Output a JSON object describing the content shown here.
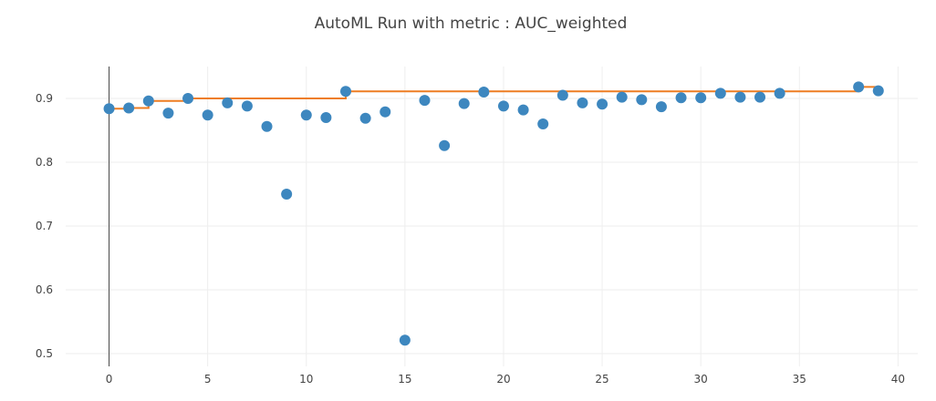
{
  "chart_data": {
    "type": "scatter",
    "title": "AutoML Run with metric : AUC_weighted",
    "xlabel": "",
    "ylabel": "",
    "xlim": [
      -2.2,
      41
    ],
    "ylim": [
      0.48,
      0.95
    ],
    "x_ticks": [
      0,
      5,
      10,
      15,
      20,
      25,
      30,
      35,
      40
    ],
    "y_ticks": [
      0.5,
      0.6,
      0.7,
      0.8,
      0.9
    ],
    "x_tick_labels": [
      "0",
      "5",
      "10",
      "15",
      "20",
      "25",
      "30",
      "35",
      "40"
    ],
    "y_tick_labels": [
      "0.5",
      "0.6",
      "0.7",
      "0.8",
      "0.9"
    ],
    "grid": true,
    "legend": "none",
    "series": [
      {
        "type": "scatter",
        "color": "#3d87bf",
        "x": [
          0,
          1,
          2,
          3,
          4,
          5,
          6,
          7,
          8,
          9,
          10,
          11,
          12,
          13,
          14,
          15,
          16,
          17,
          18,
          19,
          20,
          21,
          22,
          23,
          24,
          25,
          26,
          27,
          28,
          29,
          30,
          31,
          32,
          33,
          34,
          38,
          39
        ],
        "y": [
          0.884,
          0.885,
          0.896,
          0.877,
          0.9,
          0.874,
          0.893,
          0.888,
          0.856,
          0.75,
          0.874,
          0.87,
          0.911,
          0.869,
          0.879,
          0.521,
          0.897,
          0.826,
          0.892,
          0.91,
          0.888,
          0.882,
          0.86,
          0.905,
          0.893,
          0.891,
          0.902,
          0.898,
          0.887,
          0.901,
          0.901,
          0.908,
          0.902,
          0.902,
          0.908,
          0.918,
          0.912
        ]
      },
      {
        "type": "step",
        "color": "#ee7d22",
        "x": [
          0,
          1,
          2,
          3,
          4,
          5,
          6,
          7,
          8,
          9,
          10,
          11,
          12,
          13,
          14,
          15,
          16,
          17,
          18,
          19,
          20,
          21,
          22,
          23,
          24,
          25,
          26,
          27,
          28,
          29,
          30,
          31,
          32,
          33,
          34,
          35,
          36,
          37,
          38,
          39
        ],
        "y": [
          0.884,
          0.885,
          0.896,
          0.896,
          0.9,
          0.9,
          0.9,
          0.9,
          0.9,
          0.9,
          0.9,
          0.9,
          0.911,
          0.911,
          0.911,
          0.911,
          0.911,
          0.911,
          0.911,
          0.911,
          0.911,
          0.911,
          0.911,
          0.911,
          0.911,
          0.911,
          0.911,
          0.911,
          0.911,
          0.911,
          0.911,
          0.911,
          0.911,
          0.911,
          0.911,
          0.911,
          0.911,
          0.911,
          0.918,
          0.918
        ]
      }
    ]
  }
}
